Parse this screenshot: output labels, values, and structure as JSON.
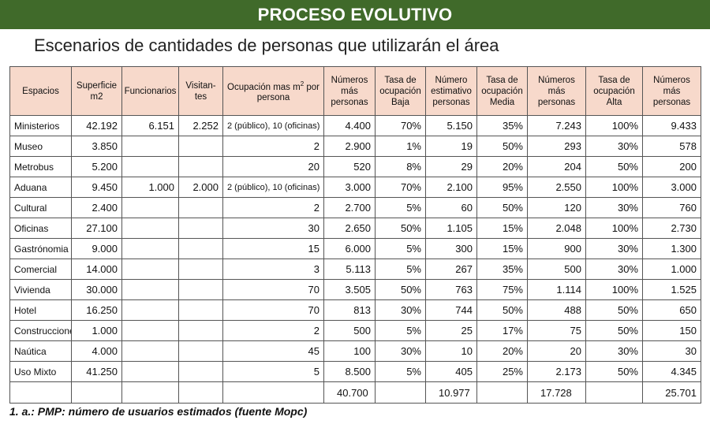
{
  "banner": "PROCESO EVOLUTIVO",
  "subtitle": "Escenarios de cantidades de personas que utilizarán el área",
  "headers": [
    "Espacios",
    "Superficie m2",
    "Funcionarios",
    "Visitan-tes",
    "Ocupación mas m² por persona",
    "Números más personas",
    "Tasa de ocupación Baja",
    "Número estimativo personas",
    "Tasa de ocupación Media",
    "Números más personas",
    "Tasa de ocupación Alta",
    "Números más personas"
  ],
  "rows": [
    {
      "espacio": "Ministerios",
      "sup": "42.192",
      "func": "6.151",
      "vis": "2.252",
      "ocup": "2 (público), 10 (oficinas)",
      "n1": "4.400",
      "tb": "70%",
      "n2": "5.150",
      "tm": "35%",
      "n3": "7.243",
      "ta": "100%",
      "n4": "9.433"
    },
    {
      "espacio": "Museo",
      "sup": "3.850",
      "func": "",
      "vis": "",
      "ocup": "2",
      "n1": "2.900",
      "tb": "1%",
      "n2": "19",
      "tm": "50%",
      "n3": "293",
      "ta": "30%",
      "n4": "578"
    },
    {
      "espacio": "Metrobus",
      "sup": "5.200",
      "func": "",
      "vis": "",
      "ocup": "20",
      "n1": "520",
      "tb": "8%",
      "n2": "29",
      "tm": "20%",
      "n3": "204",
      "ta": "50%",
      "n4": "200"
    },
    {
      "espacio": "Aduana",
      "sup": "9.450",
      "func": "1.000",
      "vis": "2.000",
      "ocup": "2 (público), 10 (oficinas)",
      "n1": "3.000",
      "tb": "70%",
      "n2": "2.100",
      "tm": "95%",
      "n3": "2.550",
      "ta": "100%",
      "n4": "3.000"
    },
    {
      "espacio": "Cultural",
      "sup": "2.400",
      "func": "",
      "vis": "",
      "ocup": "2",
      "n1": "2.700",
      "tb": "5%",
      "n2": "60",
      "tm": "50%",
      "n3": "120",
      "ta": "30%",
      "n4": "760"
    },
    {
      "espacio": "Oficinas",
      "sup": "27.100",
      "func": "",
      "vis": "",
      "ocup": "30",
      "n1": "2.650",
      "tb": "50%",
      "n2": "1.105",
      "tm": "15%",
      "n3": "2.048",
      "ta": "100%",
      "n4": "2.730"
    },
    {
      "espacio": "Gastrónomia",
      "sup": "9.000",
      "func": "",
      "vis": "",
      "ocup": "15",
      "n1": "6.000",
      "tb": "5%",
      "n2": "300",
      "tm": "15%",
      "n3": "900",
      "ta": "30%",
      "n4": "1.300"
    },
    {
      "espacio": "Comercial",
      "sup": "14.000",
      "func": "",
      "vis": "",
      "ocup": "3",
      "n1": "5.113",
      "tb": "5%",
      "n2": "267",
      "tm": "35%",
      "n3": "500",
      "ta": "30%",
      "n4": "1.000"
    },
    {
      "espacio": "Vivienda",
      "sup": "30.000",
      "func": "",
      "vis": "",
      "ocup": "70",
      "n1": "3.505",
      "tb": "50%",
      "n2": "763",
      "tm": "75%",
      "n3": "1.114",
      "ta": "100%",
      "n4": "1.525"
    },
    {
      "espacio": "Hotel",
      "sup": "16.250",
      "func": "",
      "vis": "",
      "ocup": "70",
      "n1": "813",
      "tb": "30%",
      "n2": "744",
      "tm": "50%",
      "n3": "488",
      "ta": "50%",
      "n4": "650"
    },
    {
      "espacio": "Construcciones",
      "sup": "1.000",
      "func": "",
      "vis": "",
      "ocup": "2",
      "n1": "500",
      "tb": "5%",
      "n2": "25",
      "tm": "17%",
      "n3": "75",
      "ta": "50%",
      "n4": "150"
    },
    {
      "espacio": "Naútica",
      "sup": "4.000",
      "func": "",
      "vis": "",
      "ocup": "45",
      "n1": "100",
      "tb": "30%",
      "n2": "10",
      "tm": "20%",
      "n3": "20",
      "ta": "30%",
      "n4": "30"
    },
    {
      "espacio": "Uso Mixto",
      "sup": "41.250",
      "func": "",
      "vis": "",
      "ocup": "5",
      "n1": "8.500",
      "tb": "5%",
      "n2": "405",
      "tm": "25%",
      "n3": "2.173",
      "ta": "50%",
      "n4": "4.345"
    }
  ],
  "totals": {
    "n1": "40.700",
    "n2": "10.977",
    "n3": "17.728",
    "n4": "25.701"
  },
  "footnote": "1. a.: PMP: número de usuarios estimados (fuente Mopc)",
  "colors": {
    "banner_bg": "#406a2a",
    "header_bg": "#f7d9cb"
  }
}
